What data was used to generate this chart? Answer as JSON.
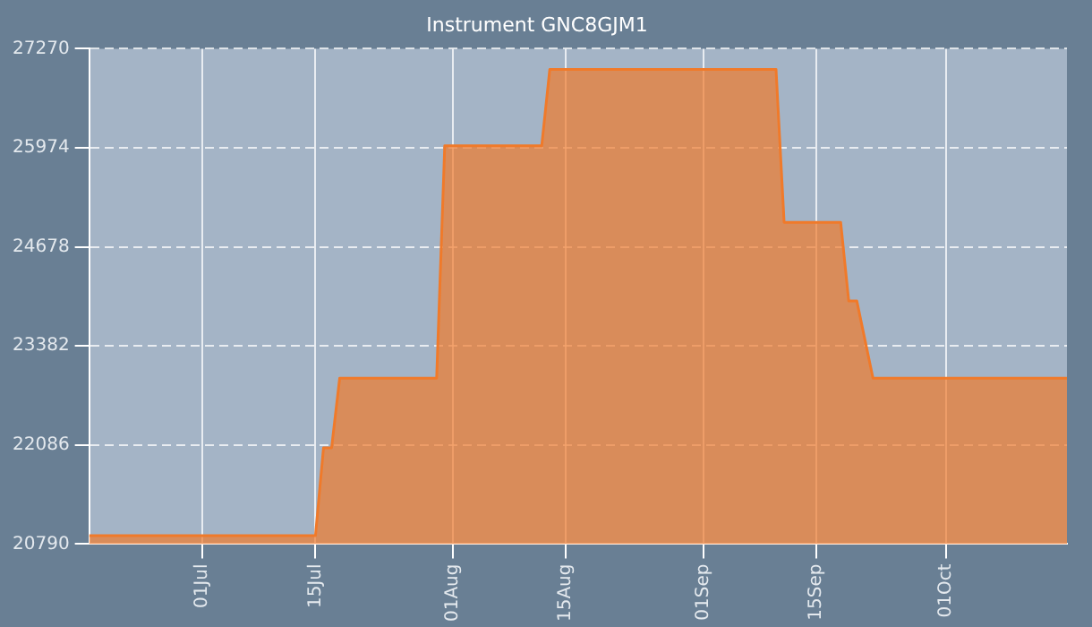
{
  "chart_data": {
    "type": "area",
    "title": "Instrument GNC8GJM1",
    "x": [
      "--06-17",
      "--07-15",
      "--07-16",
      "--07-17",
      "--07-18",
      "--07-30",
      "--07-31",
      "--08-12",
      "--08-13",
      "--09-10",
      "--09-11",
      "--09-18",
      "--09-19",
      "--09-20",
      "--09-22",
      "--10-16"
    ],
    "series": [
      {
        "color": "#f07a2a",
        "values": [
          20900,
          20900,
          22050,
          22050,
          22960,
          22960,
          26000,
          26000,
          27000,
          27000,
          25000,
          25000,
          23970,
          23970,
          22960,
          22960
        ]
      }
    ],
    "xlim": [
      "--06-17",
      "--10-16"
    ],
    "xticks": [
      {
        "value": "--07-01",
        "label": "01Jul"
      },
      {
        "value": "--07-15",
        "label": "15Jul"
      },
      {
        "value": "--08-01",
        "label": "01Aug"
      },
      {
        "value": "--08-15",
        "label": "15Aug"
      },
      {
        "value": "--09-01",
        "label": "01Sep"
      },
      {
        "value": "--09-15",
        "label": "15Sep"
      },
      {
        "value": "--10-01",
        "label": "01Oct"
      }
    ],
    "ylim": [
      20790,
      27270
    ],
    "yticks": [
      20790,
      22086,
      23382,
      24678,
      25974,
      27270
    ],
    "grid": true,
    "legend": false
  }
}
